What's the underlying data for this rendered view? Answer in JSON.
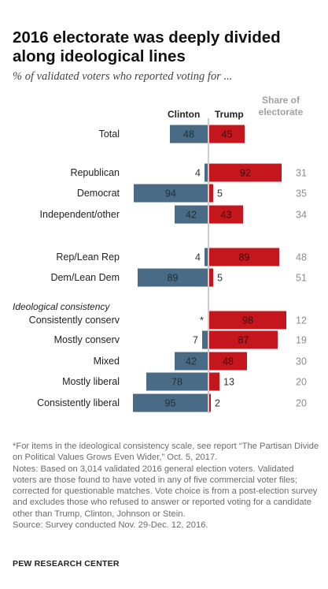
{
  "chart_data": {
    "type": "bar",
    "title": "2016 electorate was deeply divided along ideological lines",
    "subtitle": "% of validated voters who reported voting for ...",
    "column_headers": {
      "clinton": "Clinton",
      "trump": "Trump",
      "share": "Share of electorate"
    },
    "series": [
      {
        "name": "Clinton",
        "color": "#4a6b85"
      },
      {
        "name": "Trump",
        "color": "#c4161c"
      }
    ],
    "groups": [
      {
        "rows": [
          {
            "label": "Total",
            "clinton": 48,
            "trump": 45,
            "clinton_label": "48",
            "trump_label": "45",
            "share": ""
          }
        ]
      },
      {
        "rows": [
          {
            "label": "Republican",
            "clinton": 4,
            "trump": 92,
            "clinton_label": "4",
            "trump_label": "92",
            "share": "31"
          },
          {
            "label": "Democrat",
            "clinton": 94,
            "trump": 5,
            "clinton_label": "94",
            "trump_label": "5",
            "share": "35"
          },
          {
            "label": "Independent/other",
            "clinton": 42,
            "trump": 43,
            "clinton_label": "42",
            "trump_label": "43",
            "share": "34"
          }
        ]
      },
      {
        "rows": [
          {
            "label": "Rep/Lean Rep",
            "clinton": 4,
            "trump": 89,
            "clinton_label": "4",
            "trump_label": "89",
            "share": "48"
          },
          {
            "label": "Dem/Lean Dem",
            "clinton": 89,
            "trump": 5,
            "clinton_label": "89",
            "trump_label": "5",
            "share": "51"
          }
        ]
      },
      {
        "heading": "Ideological consistency",
        "rows": [
          {
            "label": "Consistently conserv",
            "clinton": 0,
            "trump": 98,
            "clinton_label": "*",
            "trump_label": "98",
            "share": "12"
          },
          {
            "label": "Mostly conserv",
            "clinton": 7,
            "trump": 87,
            "clinton_label": "7",
            "trump_label": "87",
            "share": "19"
          },
          {
            "label": "Mixed",
            "clinton": 42,
            "trump": 48,
            "clinton_label": "42",
            "trump_label": "48",
            "share": "30"
          },
          {
            "label": "Mostly liberal",
            "clinton": 78,
            "trump": 13,
            "clinton_label": "78",
            "trump_label": "13",
            "share": "20"
          },
          {
            "label": "Consistently liberal",
            "clinton": 95,
            "trump": 2,
            "clinton_label": "95",
            "trump_label": "2",
            "share": "20"
          }
        ]
      }
    ],
    "xlim": [
      0,
      100
    ]
  },
  "notes": {
    "footnote": "*For items in the ideological consistency scale, see report “The Partisan Divide on Political Values Grows Even Wider,” Oct. 5, 2017.",
    "note": "Notes: Based on 3,014 validated 2016 general election voters. Validated voters are those found to have voted in any of five commercial voter files; corrected for questionable matches. Vote choice is from a post-election survey and excludes those who refused to answer or reported voting for a candidate other than Trump, Clinton, Johnson or Stein.",
    "source": "Source: Survey conducted Nov. 29-Dec. 12, 2016.",
    "org": "PEW RESEARCH CENTER"
  }
}
